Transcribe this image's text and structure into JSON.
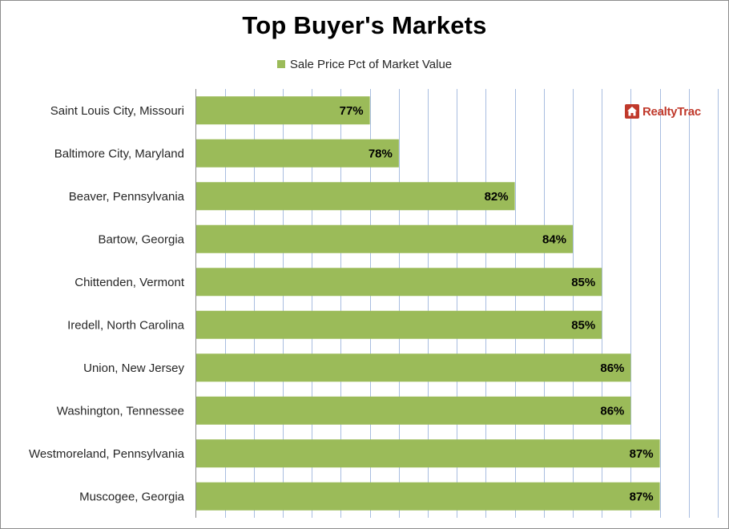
{
  "chart_data": {
    "type": "bar",
    "orientation": "horizontal",
    "title": "Top Buyer's Markets",
    "legend_position": "top",
    "series": [
      {
        "name": "Sale Price Pct of Market Value",
        "color": "#9bbb59",
        "values": [
          77,
          78,
          82,
          84,
          85,
          85,
          86,
          86,
          87,
          87
        ],
        "labels": [
          "77%",
          "78%",
          "82%",
          "84%",
          "85%",
          "85%",
          "86%",
          "86%",
          "87%",
          "87%"
        ]
      }
    ],
    "categories": [
      "Saint Louis City, Missouri",
      "Baltimore City, Maryland",
      "Beaver, Pennsylvania",
      "Bartow, Georgia",
      "Chittenden, Vermont",
      "Iredell, North Carolina",
      "Union, New Jersey",
      "Washington, Tennessee",
      "Westmoreland, Pennsylvania",
      "Muscogee, Georgia"
    ],
    "xlim": [
      71,
      89
    ],
    "gridlines": "vertical",
    "grid_color": "#a8bde0"
  },
  "logo": {
    "text": "RealtyTrac",
    "icon": "house-icon",
    "color": "#c0392b"
  }
}
